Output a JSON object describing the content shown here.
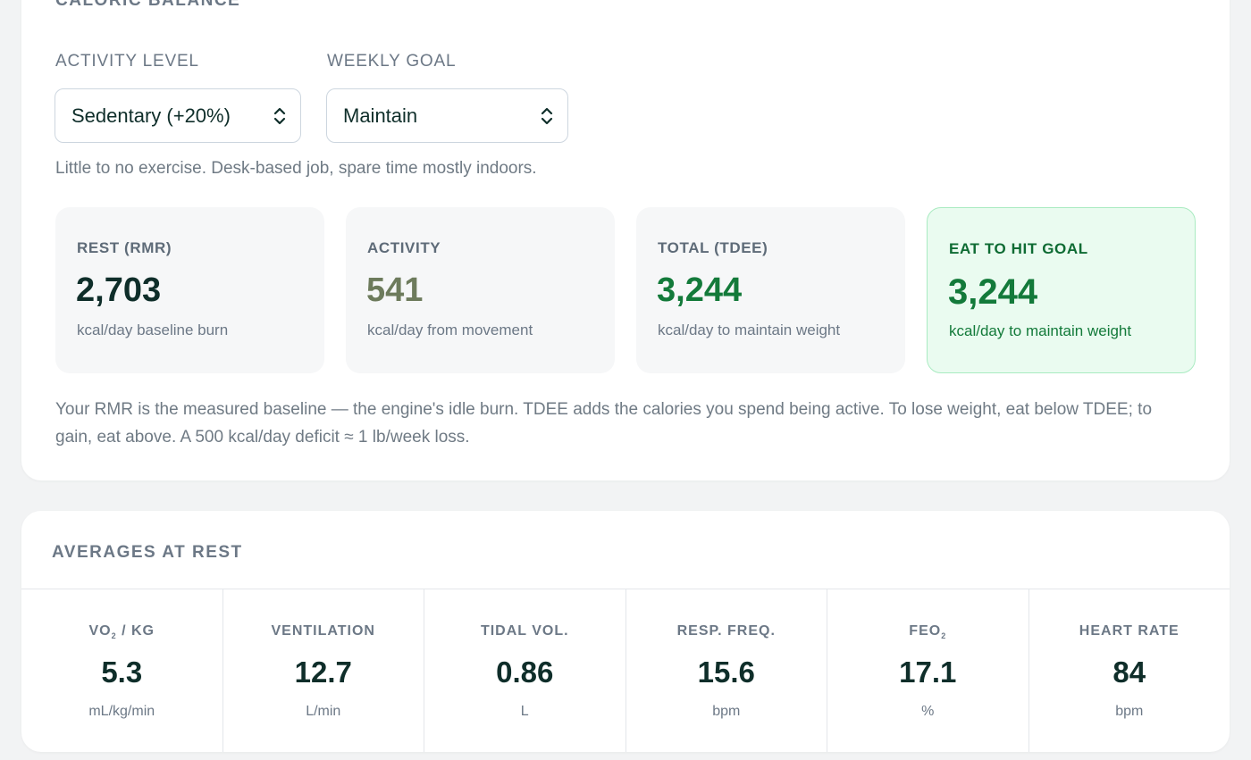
{
  "caloric_balance": {
    "title": "CALORIC BALANCE",
    "activity_level": {
      "label": "ACTIVITY LEVEL",
      "selected": "Sedentary (+20%)"
    },
    "weekly_goal": {
      "label": "WEEKLY GOAL",
      "selected": "Maintain"
    },
    "activity_description": "Little to no exercise. Desk-based job, spare time mostly indoors.",
    "stats": [
      {
        "label": "REST (RMR)",
        "value": "2,703",
        "unit": "kcal/day baseline burn"
      },
      {
        "label": "ACTIVITY",
        "value": "541",
        "unit": "kcal/day from movement"
      },
      {
        "label": "TOTAL (TDEE)",
        "value": "3,244",
        "unit": "kcal/day to maintain weight"
      },
      {
        "label": "EAT TO HIT GOAL",
        "value": "3,244",
        "unit": "kcal/day to maintain weight"
      }
    ],
    "explainer": "Your RMR is the measured baseline — the engine's idle burn. TDEE adds the calories you spend being active. To lose weight, eat below TDEE; to gain, eat above. A 500 kcal/day deficit ≈ 1 lb/week loss."
  },
  "averages": {
    "title": "AVERAGES AT REST",
    "metrics": [
      {
        "label_main": "VO",
        "label_sub": "2",
        "label_tail": " / KG",
        "value": "5.3",
        "unit": "mL/kg/min"
      },
      {
        "label_main": "VENTILATION",
        "label_sub": "",
        "label_tail": "",
        "value": "12.7",
        "unit": "L/min"
      },
      {
        "label_main": "TIDAL VOL.",
        "label_sub": "",
        "label_tail": "",
        "value": "0.86",
        "unit": "L"
      },
      {
        "label_main": "RESP. FREQ.",
        "label_sub": "",
        "label_tail": "",
        "value": "15.6",
        "unit": "bpm"
      },
      {
        "label_main": "FEO",
        "label_sub": "2",
        "label_tail": "",
        "value": "17.1",
        "unit": "%"
      },
      {
        "label_main": "HEART RATE",
        "label_sub": "",
        "label_tail": "",
        "value": "84",
        "unit": "bpm"
      }
    ]
  },
  "icons": {
    "select_chevron": "chevron-up-down-icon"
  },
  "colors": {
    "accent_green": "#137a3a",
    "goal_bg": "#eafbf0",
    "goal_border": "#a9ebc1",
    "activity_value": "#6d7b5c"
  }
}
